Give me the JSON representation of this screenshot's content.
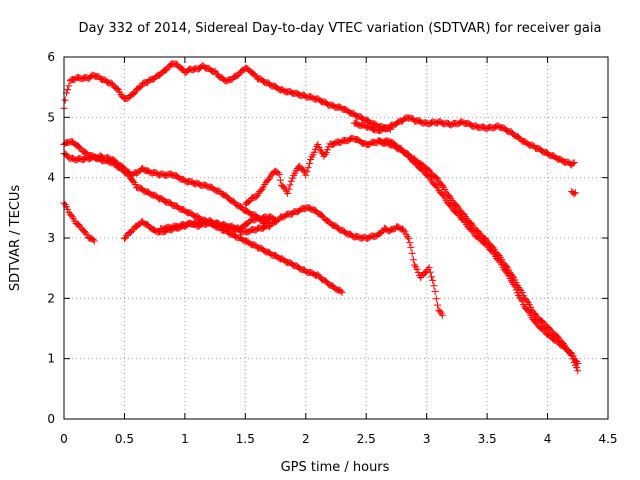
{
  "chart_data": {
    "type": "scatter",
    "title": "Day 332 of 2014, Sidereal Day-to-day VTEC variation (SDTVAR) for receiver gaia",
    "xlabel": "GPS time / hours",
    "ylabel": "SDTVAR / TECUs",
    "xlim": [
      0,
      4.5
    ],
    "ylim": [
      0,
      6
    ],
    "xticks": [
      0,
      0.5,
      1,
      1.5,
      2,
      2.5,
      3,
      3.5,
      4,
      4.5
    ],
    "xtick_labels": [
      "0",
      "0.5",
      "1",
      "1.5",
      "2",
      "2.5",
      "3",
      "3.5",
      "4",
      "4.5"
    ],
    "yticks": [
      0,
      1,
      2,
      3,
      4,
      5,
      6
    ],
    "ytick_labels": [
      "0",
      "1",
      "2",
      "3",
      "4",
      "5",
      "6"
    ],
    "grid": true,
    "marker": "plus",
    "color": "#ff0000",
    "series": [
      {
        "name": "track-1",
        "points": [
          [
            0.0,
            5.15
          ],
          [
            0.02,
            5.4
          ],
          [
            0.05,
            5.6
          ],
          [
            0.1,
            5.65
          ],
          [
            0.2,
            5.65
          ],
          [
            0.25,
            5.7
          ],
          [
            0.3,
            5.65
          ],
          [
            0.35,
            5.6
          ],
          [
            0.4,
            5.55
          ],
          [
            0.45,
            5.45
          ],
          [
            0.5,
            5.3
          ],
          [
            0.55,
            5.35
          ],
          [
            0.6,
            5.45
          ],
          [
            0.65,
            5.55
          ],
          [
            0.7,
            5.6
          ],
          [
            0.75,
            5.65
          ],
          [
            0.8,
            5.72
          ],
          [
            0.85,
            5.8
          ],
          [
            0.9,
            5.9
          ],
          [
            0.95,
            5.85
          ],
          [
            1.0,
            5.75
          ],
          [
            1.05,
            5.8
          ],
          [
            1.1,
            5.8
          ],
          [
            1.15,
            5.85
          ],
          [
            1.2,
            5.8
          ],
          [
            1.25,
            5.75
          ],
          [
            1.3,
            5.65
          ],
          [
            1.35,
            5.6
          ],
          [
            1.4,
            5.65
          ],
          [
            1.45,
            5.72
          ],
          [
            1.5,
            5.82
          ],
          [
            1.55,
            5.75
          ],
          [
            1.6,
            5.65
          ],
          [
            1.7,
            5.55
          ],
          [
            1.8,
            5.45
          ],
          [
            1.9,
            5.4
          ],
          [
            2.0,
            5.35
          ],
          [
            2.1,
            5.3
          ],
          [
            2.2,
            5.2
          ],
          [
            2.3,
            5.15
          ],
          [
            2.4,
            5.05
          ],
          [
            2.5,
            4.95
          ],
          [
            2.6,
            4.85
          ],
          [
            2.7,
            4.8
          ]
        ]
      },
      {
        "name": "track-2",
        "points": [
          [
            2.4,
            4.9
          ],
          [
            2.5,
            4.85
          ],
          [
            2.6,
            4.78
          ],
          [
            2.7,
            4.85
          ],
          [
            2.8,
            4.95
          ],
          [
            2.85,
            5.0
          ],
          [
            2.9,
            4.95
          ],
          [
            3.0,
            4.9
          ],
          [
            3.1,
            4.92
          ],
          [
            3.2,
            4.88
          ],
          [
            3.3,
            4.92
          ],
          [
            3.4,
            4.85
          ],
          [
            3.5,
            4.82
          ],
          [
            3.6,
            4.85
          ],
          [
            3.7,
            4.75
          ],
          [
            3.8,
            4.6
          ],
          [
            3.9,
            4.5
          ],
          [
            4.0,
            4.4
          ],
          [
            4.1,
            4.3
          ],
          [
            4.2,
            4.22
          ],
          [
            4.22,
            4.25
          ]
        ]
      },
      {
        "name": "track-3",
        "points": [
          [
            4.2,
            3.78
          ],
          [
            4.22,
            3.72
          ],
          [
            4.23,
            3.75
          ]
        ]
      },
      {
        "name": "track-4",
        "points": [
          [
            0.0,
            4.55
          ],
          [
            0.05,
            4.6
          ],
          [
            0.1,
            4.55
          ],
          [
            0.15,
            4.45
          ],
          [
            0.2,
            4.38
          ],
          [
            0.3,
            4.3
          ],
          [
            0.4,
            4.25
          ],
          [
            0.5,
            4.1
          ],
          [
            0.55,
            4.0
          ],
          [
            0.6,
            3.85
          ],
          [
            0.7,
            3.75
          ],
          [
            0.8,
            3.65
          ],
          [
            0.9,
            3.55
          ],
          [
            1.0,
            3.45
          ],
          [
            1.1,
            3.35
          ],
          [
            1.2,
            3.25
          ],
          [
            1.3,
            3.15
          ],
          [
            1.4,
            3.05
          ],
          [
            1.5,
            2.95
          ],
          [
            1.6,
            2.85
          ],
          [
            1.7,
            2.75
          ],
          [
            1.8,
            2.65
          ],
          [
            1.9,
            2.55
          ],
          [
            2.0,
            2.45
          ],
          [
            2.1,
            2.38
          ],
          [
            2.2,
            2.22
          ],
          [
            2.3,
            2.1
          ]
        ]
      },
      {
        "name": "track-5",
        "points": [
          [
            0.0,
            4.4
          ],
          [
            0.05,
            4.32
          ],
          [
            0.1,
            4.3
          ],
          [
            0.2,
            4.32
          ],
          [
            0.3,
            4.35
          ],
          [
            0.4,
            4.3
          ],
          [
            0.5,
            4.15
          ],
          [
            0.55,
            4.05
          ],
          [
            0.6,
            4.08
          ],
          [
            0.65,
            4.15
          ],
          [
            0.7,
            4.1
          ],
          [
            0.8,
            4.05
          ],
          [
            0.9,
            4.05
          ],
          [
            1.0,
            3.95
          ],
          [
            1.1,
            3.9
          ],
          [
            1.2,
            3.85
          ],
          [
            1.3,
            3.75
          ],
          [
            1.4,
            3.6
          ],
          [
            1.5,
            3.45
          ],
          [
            1.6,
            3.35
          ],
          [
            1.65,
            3.25
          ],
          [
            1.7,
            3.3
          ]
        ]
      },
      {
        "name": "track-6",
        "points": [
          [
            0.0,
            3.58
          ],
          [
            0.05,
            3.4
          ],
          [
            0.1,
            3.25
          ],
          [
            0.15,
            3.15
          ],
          [
            0.2,
            3.02
          ],
          [
            0.25,
            2.95
          ]
        ]
      },
      {
        "name": "track-7",
        "points": [
          [
            0.5,
            3.0
          ],
          [
            0.55,
            3.1
          ],
          [
            0.6,
            3.2
          ],
          [
            0.65,
            3.27
          ],
          [
            0.7,
            3.2
          ],
          [
            0.75,
            3.12
          ],
          [
            0.8,
            3.1
          ],
          [
            0.9,
            3.15
          ],
          [
            1.0,
            3.2
          ],
          [
            1.05,
            3.25
          ],
          [
            1.1,
            3.2
          ],
          [
            1.2,
            3.25
          ],
          [
            1.3,
            3.2
          ],
          [
            1.4,
            3.15
          ],
          [
            1.5,
            3.1
          ],
          [
            1.6,
            3.15
          ],
          [
            1.7,
            3.2
          ],
          [
            1.8,
            3.35
          ],
          [
            1.9,
            3.42
          ],
          [
            2.0,
            3.5
          ],
          [
            2.05,
            3.48
          ],
          [
            2.1,
            3.42
          ],
          [
            2.2,
            3.25
          ],
          [
            2.3,
            3.12
          ],
          [
            2.4,
            3.02
          ],
          [
            2.5,
            3.0
          ],
          [
            2.6,
            3.05
          ],
          [
            2.65,
            3.15
          ],
          [
            2.7,
            3.12
          ],
          [
            2.75,
            3.18
          ],
          [
            2.8,
            3.15
          ],
          [
            2.85,
            3.0
          ],
          [
            2.88,
            2.75
          ],
          [
            2.9,
            2.55
          ],
          [
            2.95,
            2.35
          ],
          [
            3.0,
            2.45
          ],
          [
            3.02,
            2.5
          ],
          [
            3.05,
            2.3
          ],
          [
            3.08,
            2.0
          ],
          [
            3.1,
            1.8
          ],
          [
            3.13,
            1.72
          ]
        ]
      },
      {
        "name": "track-8",
        "points": [
          [
            0.8,
            3.15
          ],
          [
            0.9,
            3.18
          ],
          [
            1.0,
            3.22
          ],
          [
            1.1,
            3.25
          ],
          [
            1.2,
            3.28
          ],
          [
            1.3,
            3.22
          ],
          [
            1.4,
            3.18
          ],
          [
            1.45,
            3.15
          ],
          [
            1.5,
            3.22
          ],
          [
            1.55,
            3.3
          ],
          [
            1.6,
            3.32
          ],
          [
            1.7,
            3.35
          ],
          [
            1.75,
            3.3
          ]
        ]
      },
      {
        "name": "track-9",
        "points": [
          [
            1.5,
            3.55
          ],
          [
            1.55,
            3.65
          ],
          [
            1.6,
            3.7
          ],
          [
            1.65,
            3.85
          ],
          [
            1.7,
            4.0
          ],
          [
            1.75,
            4.12
          ],
          [
            1.78,
            4.05
          ],
          [
            1.8,
            3.88
          ],
          [
            1.85,
            3.75
          ],
          [
            1.9,
            4.05
          ],
          [
            1.95,
            4.2
          ],
          [
            2.0,
            4.05
          ],
          [
            2.05,
            4.35
          ],
          [
            2.1,
            4.55
          ],
          [
            2.15,
            4.35
          ],
          [
            2.2,
            4.55
          ],
          [
            2.3,
            4.6
          ],
          [
            2.4,
            4.65
          ],
          [
            2.5,
            4.55
          ],
          [
            2.6,
            4.6
          ],
          [
            2.7,
            4.6
          ],
          [
            2.8,
            4.45
          ],
          [
            2.9,
            4.3
          ],
          [
            3.0,
            4.15
          ],
          [
            3.1,
            3.95
          ],
          [
            3.2,
            3.65
          ],
          [
            3.3,
            3.4
          ],
          [
            3.4,
            3.15
          ],
          [
            3.5,
            2.95
          ],
          [
            3.6,
            2.7
          ],
          [
            3.7,
            2.4
          ],
          [
            3.8,
            2.05
          ],
          [
            3.9,
            1.72
          ],
          [
            4.0,
            1.52
          ],
          [
            4.1,
            1.32
          ],
          [
            4.2,
            1.05
          ],
          [
            4.25,
            0.8
          ]
        ]
      },
      {
        "name": "track-10",
        "points": [
          [
            2.6,
            4.6
          ],
          [
            2.7,
            4.55
          ],
          [
            2.8,
            4.45
          ],
          [
            2.9,
            4.25
          ],
          [
            3.0,
            4.05
          ],
          [
            3.1,
            3.8
          ],
          [
            3.2,
            3.52
          ],
          [
            3.3,
            3.3
          ],
          [
            3.4,
            3.05
          ],
          [
            3.5,
            2.88
          ],
          [
            3.6,
            2.62
          ],
          [
            3.7,
            2.3
          ],
          [
            3.8,
            1.9
          ],
          [
            3.9,
            1.6
          ],
          [
            4.0,
            1.4
          ],
          [
            4.1,
            1.25
          ],
          [
            4.2,
            1.08
          ],
          [
            4.25,
            0.92
          ]
        ]
      }
    ]
  }
}
